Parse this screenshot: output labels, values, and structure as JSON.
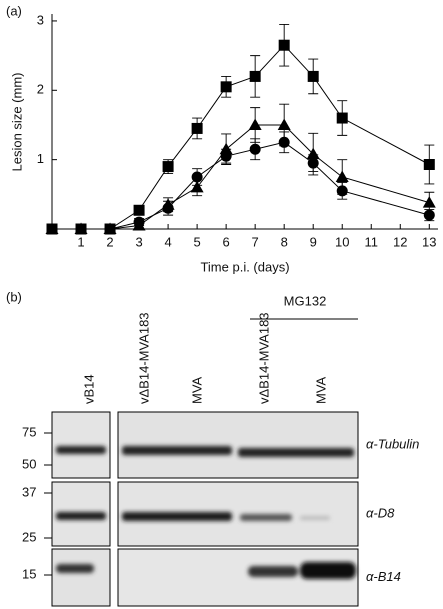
{
  "chart_data": {
    "type": "line",
    "label": "(a)",
    "x_label": "Time p.i. (days)",
    "y_label": "Lesion size (mm)",
    "x": [
      0,
      1,
      2,
      3,
      4,
      5,
      6,
      7,
      8,
      9,
      10,
      13
    ],
    "xlim": [
      0,
      13.3
    ],
    "xticks": [
      1,
      2,
      3,
      4,
      5,
      6,
      7,
      8,
      9,
      10,
      11,
      12,
      13
    ],
    "ylim": [
      0,
      3.1
    ],
    "yticks": [
      1,
      2,
      3
    ],
    "series": [
      {
        "marker": "square",
        "color": "#000000",
        "values": [
          0,
          0,
          0,
          0.27,
          0.9,
          1.45,
          2.05,
          2.2,
          2.65,
          2.2,
          1.6,
          0.93
        ],
        "errors": [
          null,
          null,
          null,
          0.05,
          0.1,
          0.15,
          0.15,
          0.3,
          0.3,
          0.25,
          0.25,
          0.28
        ]
      },
      {
        "marker": "triangle",
        "color": "#000000",
        "values": [
          0,
          0,
          0,
          0.05,
          0.35,
          0.6,
          1.15,
          1.5,
          1.5,
          1.08,
          0.75,
          0.38
        ],
        "errors": [
          null,
          null,
          null,
          0.05,
          0.1,
          0.12,
          0.22,
          0.25,
          0.3,
          0.3,
          0.25,
          0.15
        ]
      },
      {
        "marker": "circle",
        "color": "#000000",
        "values": [
          0,
          0,
          0,
          0.1,
          0.3,
          0.75,
          1.05,
          1.15,
          1.25,
          0.95,
          0.55,
          0.2
        ],
        "errors": [
          null,
          null,
          null,
          0.05,
          0.1,
          0.12,
          0.1,
          0.15,
          0.15,
          0.12,
          0.12,
          0.08
        ]
      }
    ]
  },
  "blot": {
    "label": "(b)",
    "treatment": "MG132",
    "lanes": [
      "vB14",
      "vΔB14-MVA183",
      "MVA",
      "vΔB14-MVA183",
      "MVA"
    ],
    "rows": [
      {
        "antibody": "α-Tubulin",
        "markers": [
          "75",
          "50"
        ]
      },
      {
        "antibody": "α-D8",
        "markers": [
          "37",
          "25"
        ]
      },
      {
        "antibody": "α-B14",
        "markers": [
          "15"
        ]
      }
    ]
  }
}
